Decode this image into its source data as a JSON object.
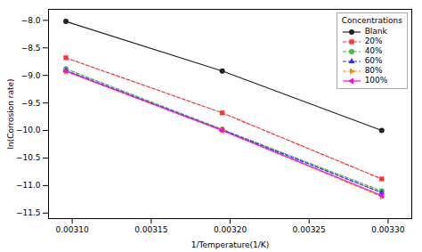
{
  "chart_data": {
    "type": "line",
    "xlabel": "1/Temperature(1/K)",
    "ylabel": "ln(Corrosion rate)",
    "legend_title": "Concentrations",
    "x": [
      0.003096,
      0.003195,
      0.003296
    ],
    "series": [
      {
        "name": "Blank",
        "color": "#222222",
        "line_style": "solid",
        "marker": "circle",
        "values": [
          -8.02,
          -8.92,
          -10.0
        ]
      },
      {
        "name": "20%",
        "color": "#ff3333",
        "line_style": "dashed",
        "marker": "square",
        "values": [
          -8.68,
          -9.68,
          -10.88
        ]
      },
      {
        "name": "40%",
        "color": "#44bb44",
        "line_style": "dashed",
        "marker": "circle",
        "values": [
          -8.88,
          -9.98,
          -11.1
        ]
      },
      {
        "name": "60%",
        "color": "#2233ff",
        "line_style": "dashed",
        "marker": "triangle-up",
        "values": [
          -8.91,
          -9.99,
          -11.13
        ]
      },
      {
        "name": "80%",
        "color": "#ff8800",
        "line_style": "dashed",
        "marker": "triangle-right",
        "values": [
          -8.93,
          -10.0,
          -11.2
        ]
      },
      {
        "name": "100%",
        "color": "#ff00ff",
        "line_style": "solid",
        "marker": "triangle-left",
        "values": [
          -8.92,
          -10.0,
          -11.18
        ]
      }
    ],
    "xlim": [
      0.003085,
      0.003315
    ],
    "ylim": [
      -11.6,
      -7.8
    ],
    "xticks": [
      {
        "value": 0.0031,
        "label": "0.00310"
      },
      {
        "value": 0.00315,
        "label": "0.00315"
      },
      {
        "value": 0.0032,
        "label": "0.00320"
      },
      {
        "value": 0.00325,
        "label": "0.00325"
      },
      {
        "value": 0.0033,
        "label": "0.00330"
      }
    ],
    "yticks": [
      {
        "value": -8.0,
        "label": "−8.0"
      },
      {
        "value": -8.5,
        "label": "−8.5"
      },
      {
        "value": -9.0,
        "label": "−9.0"
      },
      {
        "value": -9.5,
        "label": "−9.5"
      },
      {
        "value": -10.0,
        "label": "−10.0"
      },
      {
        "value": -10.5,
        "label": "−10.5"
      },
      {
        "value": -11.0,
        "label": "−11.0"
      },
      {
        "value": -11.5,
        "label": "−11.5"
      }
    ],
    "grid": false,
    "legend": "upper right"
  }
}
